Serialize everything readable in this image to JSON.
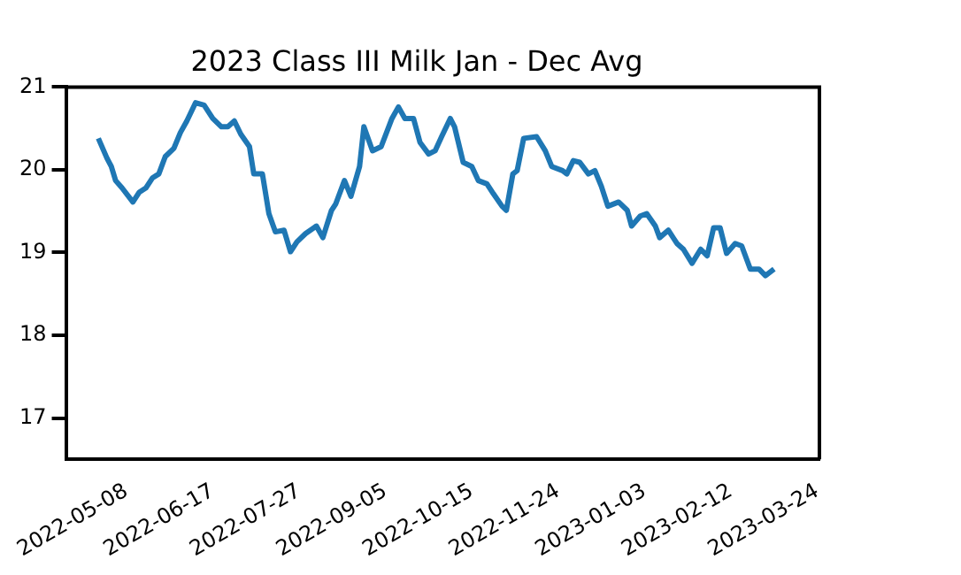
{
  "chart_data": {
    "type": "line",
    "title": "2023 Class III Milk Jan - Dec Avg",
    "x": [
      "2022-04-25",
      "2022-04-29",
      "2022-05-01",
      "2022-05-03",
      "2022-05-06",
      "2022-05-11",
      "2022-05-14",
      "2022-05-17",
      "2022-05-20",
      "2022-05-23",
      "2022-05-26",
      "2022-05-30",
      "2022-06-02",
      "2022-06-05",
      "2022-06-09",
      "2022-06-13",
      "2022-06-17",
      "2022-06-21",
      "2022-06-24",
      "2022-06-27",
      "2022-06-30",
      "2022-07-04",
      "2022-07-06",
      "2022-07-10",
      "2022-07-13",
      "2022-07-16",
      "2022-07-20",
      "2022-07-23",
      "2022-07-26",
      "2022-07-30",
      "2022-08-04",
      "2022-08-07",
      "2022-08-11",
      "2022-08-13",
      "2022-08-17",
      "2022-08-20",
      "2022-08-24",
      "2022-08-26",
      "2022-08-30",
      "2022-09-03",
      "2022-09-08",
      "2022-09-11",
      "2022-09-14",
      "2022-09-18",
      "2022-09-21",
      "2022-09-25",
      "2022-09-28",
      "2022-10-01",
      "2022-10-05",
      "2022-10-07",
      "2022-10-11",
      "2022-10-15",
      "2022-10-18",
      "2022-10-22",
      "2022-10-25",
      "2022-10-29",
      "2022-10-31",
      "2022-11-03",
      "2022-11-05",
      "2022-11-08",
      "2022-11-14",
      "2022-11-18",
      "2022-11-21",
      "2022-11-26",
      "2022-11-28",
      "2022-12-01",
      "2022-12-04",
      "2022-12-08",
      "2022-12-11",
      "2022-12-14",
      "2022-12-17",
      "2022-12-22",
      "2022-12-26",
      "2022-12-28",
      "2023-01-01",
      "2023-01-04",
      "2023-01-08",
      "2023-01-10",
      "2023-01-14",
      "2023-01-18",
      "2023-01-21",
      "2023-01-25",
      "2023-01-29",
      "2023-02-01",
      "2023-02-04",
      "2023-02-07",
      "2023-02-10",
      "2023-02-14",
      "2023-02-17",
      "2023-02-21",
      "2023-02-25",
      "2023-02-28",
      "2023-03-04"
    ],
    "series": [
      {
        "color": "#1f77b4",
        "values": [
          20.38,
          20.14,
          20.04,
          19.87,
          19.78,
          19.61,
          19.73,
          19.78,
          19.9,
          19.95,
          20.16,
          20.26,
          20.45,
          20.59,
          20.81,
          20.78,
          20.62,
          20.52,
          20.52,
          20.59,
          20.43,
          20.28,
          19.95,
          19.95,
          19.47,
          19.25,
          19.27,
          19.01,
          19.13,
          19.23,
          19.32,
          19.18,
          19.51,
          19.59,
          19.87,
          19.68,
          20.04,
          20.52,
          20.23,
          20.28,
          20.62,
          20.76,
          20.62,
          20.62,
          20.33,
          20.19,
          20.23,
          20.4,
          20.62,
          20.52,
          20.09,
          20.04,
          19.87,
          19.83,
          19.71,
          19.56,
          19.51,
          19.95,
          19.99,
          20.38,
          20.4,
          20.23,
          20.04,
          19.99,
          19.95,
          20.11,
          20.09,
          19.95,
          19.99,
          19.8,
          19.56,
          19.61,
          19.51,
          19.32,
          19.44,
          19.47,
          19.32,
          19.18,
          19.27,
          19.11,
          19.04,
          18.87,
          19.04,
          18.96,
          19.3,
          19.3,
          18.99,
          19.11,
          19.08,
          18.8,
          18.8,
          18.72,
          18.8
        ]
      }
    ],
    "xlim": [
      "2022-04-10",
      "2023-03-25"
    ],
    "xticks": [
      "2022-05-08",
      "2022-06-17",
      "2022-07-27",
      "2022-09-05",
      "2022-10-15",
      "2022-11-24",
      "2023-01-03",
      "2023-02-12",
      "2023-03-24"
    ],
    "ylim": [
      16.5,
      21
    ],
    "yticks": [
      17,
      18,
      19,
      20,
      21
    ],
    "grid": false,
    "legend": false
  }
}
